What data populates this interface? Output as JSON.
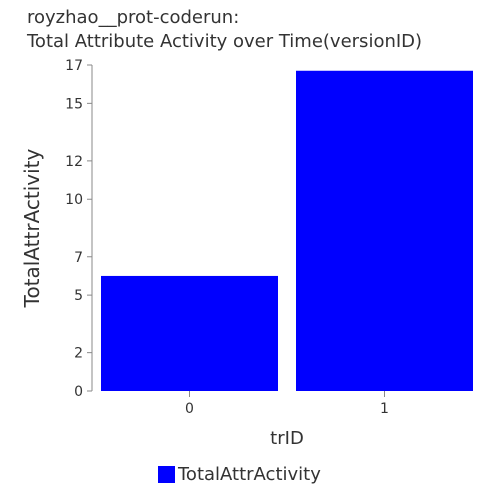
{
  "chart_data": {
    "type": "bar",
    "title_line1": "royzhao__prot-coderun:",
    "title_line2": "Total Attribute Activity over Time(versionID)",
    "xlabel": "trID",
    "ylabel": "TotalAttrActivity",
    "categories": [
      "0",
      "1"
    ],
    "series": [
      {
        "name": "TotalAttrActivity",
        "values": [
          6,
          16.7
        ]
      }
    ],
    "ylim": [
      0,
      17
    ],
    "yticks": [
      0,
      2,
      5,
      7,
      10,
      12,
      15,
      17
    ],
    "bar_color": "#0000ff",
    "grid": false,
    "legend_position": "bottom-center"
  }
}
